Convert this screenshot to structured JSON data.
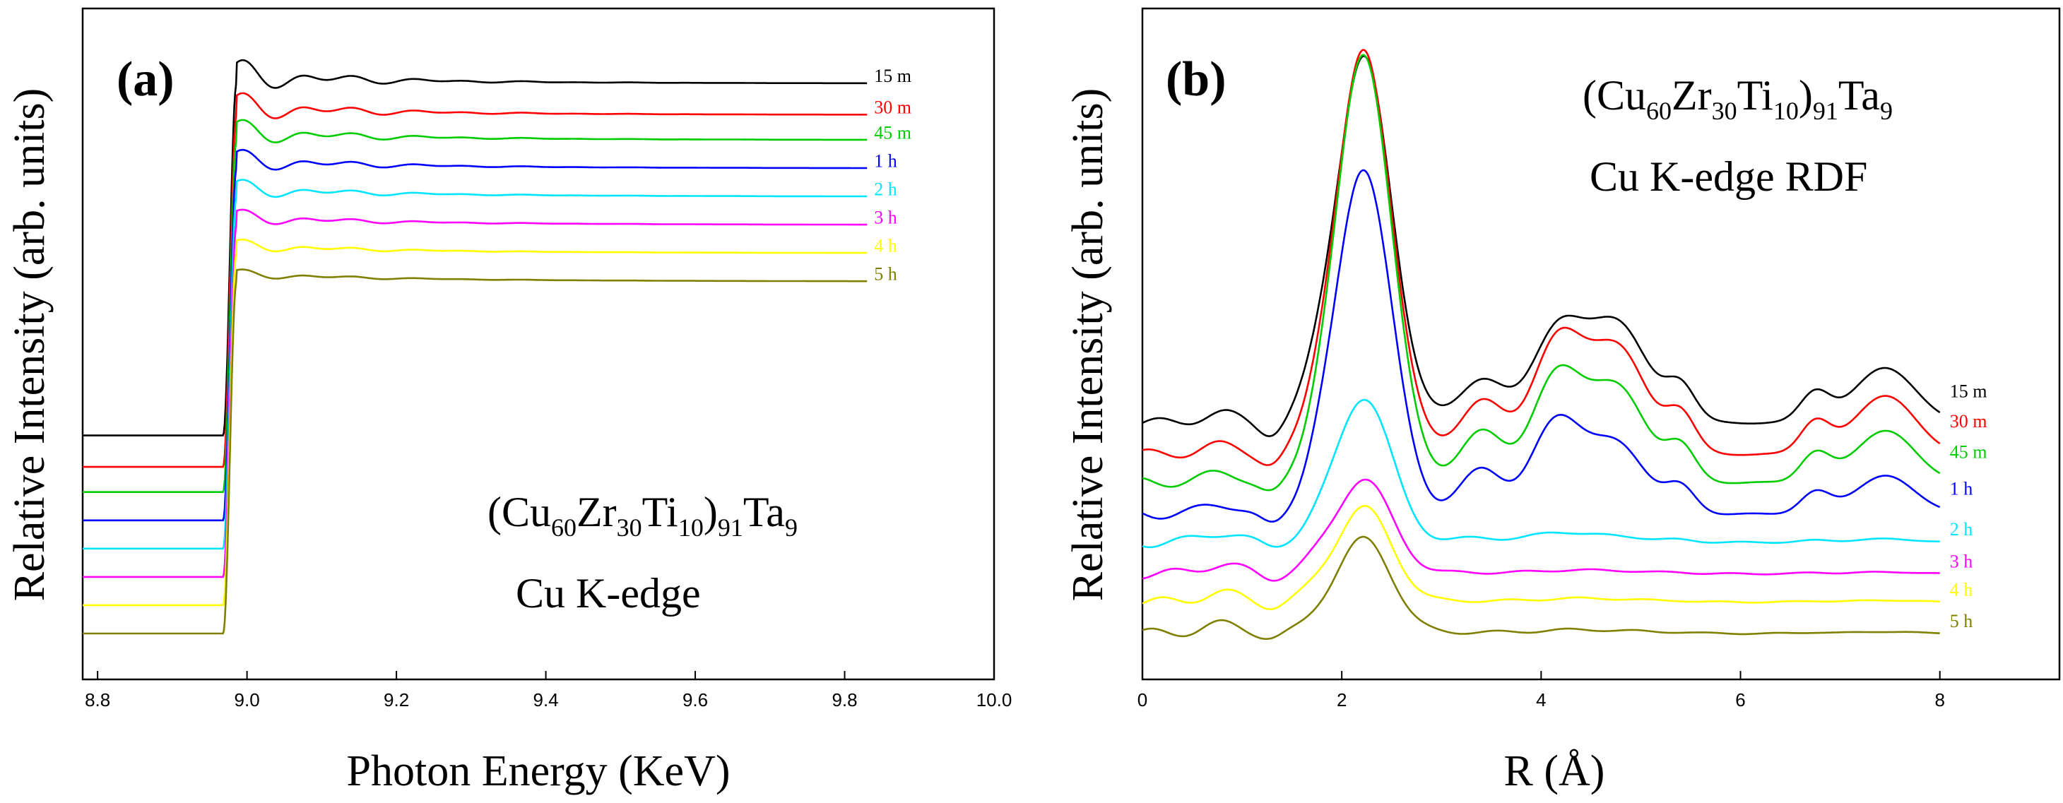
{
  "chart_data": [
    {
      "type": "line",
      "panel": "(a)",
      "xlabel": "Photon Energy (KeV)",
      "ylabel": "Relative Intensity (arb. units)",
      "xlim": [
        8.78,
        10.0
      ],
      "xticks": [
        "8.8",
        "9.0",
        "9.2",
        "9.4",
        "9.6",
        "9.8",
        "10.0"
      ],
      "xtick_values": [
        8.8,
        9.0,
        9.2,
        9.4,
        9.6,
        9.8,
        10.0
      ],
      "annotation_formula": {
        "base": "(Cu",
        "s1": "60",
        "zr": "Zr",
        "s2": "30",
        "ti": "Ti",
        "s3": "10",
        "close": ")",
        "s4": "91",
        "ta": "Ta",
        "s5": "9"
      },
      "annotation_line2": "Cu K-edge",
      "edge_energy": 8.98,
      "x_end": 9.83,
      "series": [
        {
          "name": "15 m",
          "color": "#000000",
          "pre_edge": 0.36,
          "post_edge": 0.92
        },
        {
          "name": "30 m",
          "color": "#ff0000",
          "pre_edge": 0.31,
          "post_edge": 0.87
        },
        {
          "name": "45 m",
          "color": "#00cc00",
          "pre_edge": 0.27,
          "post_edge": 0.83
        },
        {
          "name": "1 h",
          "color": "#0000ff",
          "pre_edge": 0.225,
          "post_edge": 0.785
        },
        {
          "name": "2 h",
          "color": "#00e5ff",
          "pre_edge": 0.18,
          "post_edge": 0.74
        },
        {
          "name": "3 h",
          "color": "#ff00ff",
          "pre_edge": 0.135,
          "post_edge": 0.695
        },
        {
          "name": "4 h",
          "color": "#ffff00",
          "pre_edge": 0.09,
          "post_edge": 0.65
        },
        {
          "name": "5 h",
          "color": "#808000",
          "pre_edge": 0.045,
          "post_edge": 0.605
        }
      ]
    },
    {
      "type": "line",
      "panel": "(b)",
      "xlabel": "R (Å)",
      "ylabel": "Relative Intensity (arb. units)",
      "xlim": [
        0,
        9.2
      ],
      "xticks": [
        "0",
        "2",
        "4",
        "6",
        "8"
      ],
      "xtick_values": [
        0,
        2,
        4,
        6,
        8
      ],
      "annotation_formula": {
        "base": "(Cu",
        "s1": "60",
        "zr": "Zr",
        "s2": "30",
        "ti": "Ti",
        "s3": "10",
        "close": ")",
        "s4": "91",
        "ta": "Ta",
        "s5": "9"
      },
      "annotation_line2": "Cu K-edge RDF",
      "x_end": 8.0,
      "series": [
        {
          "name": "15 m",
          "color": "#000000",
          "baseline": 0.38,
          "peak1": 0.58,
          "peak2": 0.14,
          "peak3": 0.16
        },
        {
          "name": "30 m",
          "color": "#ff0000",
          "baseline": 0.33,
          "peak1": 0.64,
          "peak2": 0.17,
          "peak3": 0.17
        },
        {
          "name": "45 m",
          "color": "#00cc00",
          "baseline": 0.285,
          "peak1": 0.68,
          "peak2": 0.16,
          "peak3": 0.15
        },
        {
          "name": "1 h",
          "color": "#0000ff",
          "baseline": 0.235,
          "peak1": 0.55,
          "peak2": 0.14,
          "peak3": 0.11
        },
        {
          "name": "2 h",
          "color": "#00e5ff",
          "baseline": 0.19,
          "peak1": 0.23,
          "peak2": 0.015,
          "peak3": 0.01
        },
        {
          "name": "3 h",
          "color": "#ff00ff",
          "baseline": 0.14,
          "peak1": 0.15,
          "peak2": 0.005,
          "peak3": 0.005
        },
        {
          "name": "4 h",
          "color": "#ffff00",
          "baseline": 0.095,
          "peak1": 0.15,
          "peak2": 0.005,
          "peak3": 0.005
        },
        {
          "name": "5 h",
          "color": "#808000",
          "baseline": 0.045,
          "peak1": 0.15,
          "peak2": 0.005,
          "peak3": 0.005
        }
      ]
    }
  ]
}
